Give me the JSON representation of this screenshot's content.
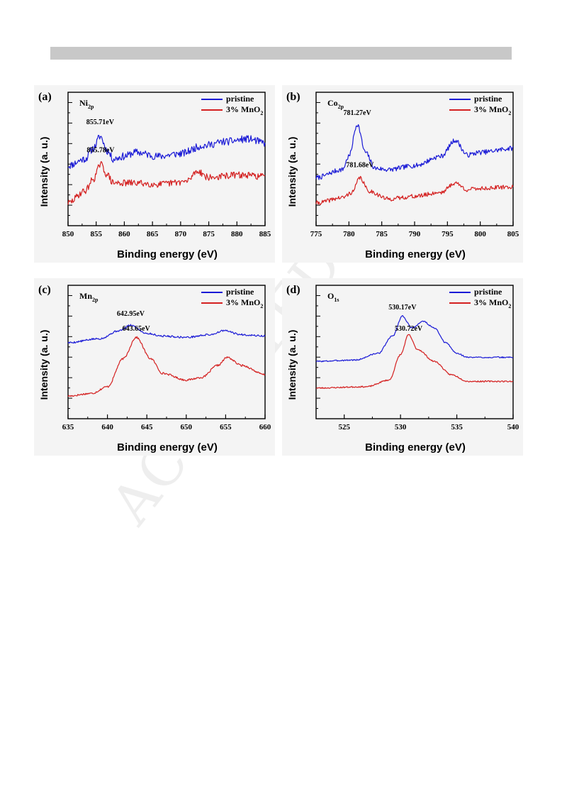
{
  "watermark": "ACCEPTED",
  "chart_data": [
    {
      "panel": "(a)",
      "type": "line",
      "element": "Ni",
      "element_sub": "2p",
      "xlabel": "Binding energy (eV)",
      "ylabel": "Intensity (a. u.)",
      "xlim": [
        850,
        885
      ],
      "xticks": [
        850,
        855,
        860,
        865,
        870,
        875,
        880,
        885
      ],
      "ylim": [
        0,
        1
      ],
      "grid": false,
      "legend": "top-right",
      "legend_entries": [
        {
          "label": "pristine",
          "sub": ""
        },
        {
          "label": "3% MnO",
          "sub": "2"
        }
      ],
      "colors": {
        "pristine": "#1a1ad6",
        "mno2": "#d42020"
      },
      "series": [
        {
          "name": "pristine",
          "noise": 0.028,
          "seed": 11,
          "points": [
            [
              850,
              0.45
            ],
            [
              853,
              0.5
            ],
            [
              854.5,
              0.58
            ],
            [
              855.71,
              0.67
            ],
            [
              857,
              0.56
            ],
            [
              858,
              0.5
            ],
            [
              860,
              0.52
            ],
            [
              862,
              0.55
            ],
            [
              866,
              0.52
            ],
            [
              870,
              0.54
            ],
            [
              874,
              0.6
            ],
            [
              878,
              0.63
            ],
            [
              882,
              0.65
            ],
            [
              885,
              0.62
            ]
          ]
        },
        {
          "name": "3% MnO2",
          "noise": 0.025,
          "seed": 29,
          "points": [
            [
              850,
              0.17
            ],
            [
              853,
              0.26
            ],
            [
              854.5,
              0.35
            ],
            [
              855.78,
              0.46
            ],
            [
              857,
              0.38
            ],
            [
              858,
              0.32
            ],
            [
              862,
              0.32
            ],
            [
              866,
              0.31
            ],
            [
              871,
              0.33
            ],
            [
              873,
              0.41
            ],
            [
              875,
              0.36
            ],
            [
              880,
              0.38
            ],
            [
              885,
              0.37
            ]
          ]
        }
      ],
      "peaks": [
        {
          "label": "855.71eV",
          "x": 855.71,
          "y": 0.76
        },
        {
          "label": "855.78eV",
          "x": 855.78,
          "y": 0.55
        }
      ]
    },
    {
      "panel": "(b)",
      "type": "line",
      "element": "Co",
      "element_sub": "2p",
      "xlabel": "Binding energy (eV)",
      "ylabel": "Intensity (a. u.)",
      "xlim": [
        775,
        805
      ],
      "xticks": [
        775,
        780,
        785,
        790,
        795,
        800,
        805
      ],
      "ylim": [
        0,
        1
      ],
      "grid": false,
      "legend": "top-right",
      "legend_entries": [
        {
          "label": "pristine",
          "sub": ""
        },
        {
          "label": "3% MnO",
          "sub": "2"
        }
      ],
      "colors": {
        "pristine": "#1a1ad6",
        "mno2": "#d42020"
      },
      "series": [
        {
          "name": "pristine",
          "noise": 0.018,
          "seed": 7,
          "points": [
            [
              775,
              0.36
            ],
            [
              779,
              0.42
            ],
            [
              780,
              0.52
            ],
            [
              781.27,
              0.76
            ],
            [
              782.5,
              0.55
            ],
            [
              784,
              0.43
            ],
            [
              786,
              0.42
            ],
            [
              790,
              0.45
            ],
            [
              794,
              0.52
            ],
            [
              796.2,
              0.64
            ],
            [
              798,
              0.53
            ],
            [
              800,
              0.55
            ],
            [
              805,
              0.58
            ]
          ]
        },
        {
          "name": "3% MnO2",
          "noise": 0.016,
          "seed": 41,
          "points": [
            [
              775,
              0.17
            ],
            [
              779,
              0.21
            ],
            [
              780.5,
              0.25
            ],
            [
              781.68,
              0.36
            ],
            [
              783,
              0.26
            ],
            [
              786,
              0.2
            ],
            [
              790,
              0.22
            ],
            [
              794,
              0.25
            ],
            [
              796.2,
              0.32
            ],
            [
              798,
              0.27
            ],
            [
              800,
              0.28
            ],
            [
              805,
              0.29
            ]
          ]
        }
      ],
      "peaks": [
        {
          "label": "781.27eV",
          "x": 781.27,
          "y": 0.83
        },
        {
          "label": "781.68eV",
          "x": 781.68,
          "y": 0.44
        }
      ]
    },
    {
      "panel": "(c)",
      "type": "line",
      "element": "Mn",
      "element_sub": "2p",
      "xlabel": "Binding energy (eV)",
      "ylabel": "Intensity (a. u.)",
      "xlim": [
        635,
        660
      ],
      "xticks": [
        635,
        640,
        645,
        650,
        655,
        660
      ],
      "ylim": [
        0,
        1
      ],
      "grid": false,
      "legend": "top-right",
      "legend_entries": [
        {
          "label": "pristine",
          "sub": ""
        },
        {
          "label": "3% MnO",
          "sub": "2"
        }
      ],
      "colors": {
        "pristine": "#1a1ad6",
        "mno2": "#d42020"
      },
      "series": [
        {
          "name": "pristine",
          "noise": 0.007,
          "seed": 5,
          "points": [
            [
              635,
              0.57
            ],
            [
              639,
              0.6
            ],
            [
              641.5,
              0.66
            ],
            [
              642.95,
              0.7
            ],
            [
              645,
              0.64
            ],
            [
              647,
              0.62
            ],
            [
              650,
              0.61
            ],
            [
              653,
              0.63
            ],
            [
              654.8,
              0.66
            ],
            [
              657,
              0.63
            ],
            [
              660,
              0.62
            ]
          ]
        },
        {
          "name": "3% MnO2",
          "noise": 0.007,
          "seed": 17,
          "points": [
            [
              635,
              0.17
            ],
            [
              638,
              0.19
            ],
            [
              640,
              0.24
            ],
            [
              642,
              0.45
            ],
            [
              643.65,
              0.61
            ],
            [
              645.5,
              0.45
            ],
            [
              647,
              0.34
            ],
            [
              650,
              0.29
            ],
            [
              652,
              0.31
            ],
            [
              654,
              0.4
            ],
            [
              655.2,
              0.46
            ],
            [
              657,
              0.4
            ],
            [
              660,
              0.33
            ]
          ]
        }
      ],
      "peaks": [
        {
          "label": "642.95eV",
          "x": 642.95,
          "y": 0.77
        },
        {
          "label": "643.65eV",
          "x": 643.65,
          "y": 0.66
        }
      ]
    },
    {
      "panel": "(d)",
      "type": "line",
      "element": "O",
      "element_sub": "1s",
      "xlabel": "Binding energy (eV)",
      "ylabel": "Intensity (a. u.)",
      "xlim": [
        522.5,
        540
      ],
      "xticks": [
        525,
        530,
        535,
        540
      ],
      "ylim": [
        0,
        1
      ],
      "grid": false,
      "legend": "top-right",
      "legend_entries": [
        {
          "label": "pristine",
          "sub": ""
        },
        {
          "label": "3% MnO",
          "sub": "2"
        }
      ],
      "colors": {
        "pristine": "#1a1ad6",
        "mno2": "#d42020"
      },
      "series": [
        {
          "name": "pristine",
          "noise": 0.005,
          "seed": 3,
          "points": [
            [
              522.5,
              0.43
            ],
            [
              526,
              0.44
            ],
            [
              528,
              0.49
            ],
            [
              529.3,
              0.62
            ],
            [
              530.17,
              0.77
            ],
            [
              531,
              0.68
            ],
            [
              532,
              0.73
            ],
            [
              533,
              0.68
            ],
            [
              534,
              0.57
            ],
            [
              535,
              0.49
            ],
            [
              536,
              0.46
            ],
            [
              540,
              0.46
            ]
          ]
        },
        {
          "name": "3% MnO2",
          "noise": 0.005,
          "seed": 23,
          "points": [
            [
              522.5,
              0.23
            ],
            [
              527,
              0.24
            ],
            [
              529,
              0.29
            ],
            [
              530,
              0.48
            ],
            [
              530.72,
              0.63
            ],
            [
              531.5,
              0.52
            ],
            [
              533,
              0.43
            ],
            [
              534.5,
              0.33
            ],
            [
              536,
              0.28
            ],
            [
              540,
              0.28
            ]
          ]
        }
      ],
      "peaks": [
        {
          "label": "530.17eV",
          "x": 530.17,
          "y": 0.82
        },
        {
          "label": "530.72eV",
          "x": 530.72,
          "y": 0.66
        }
      ]
    }
  ]
}
